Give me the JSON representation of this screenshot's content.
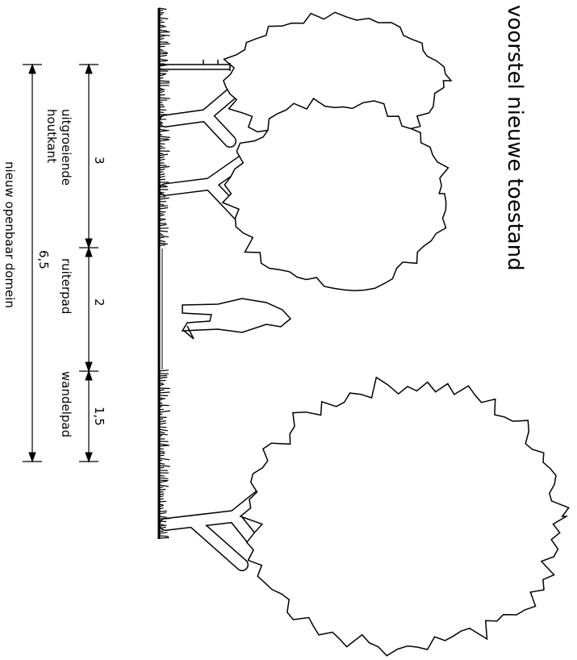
{
  "title": "voorstel nieuwe toestand",
  "zones": [
    {
      "length": "3",
      "label_lines": [
        "uitgroeiende",
        "houtkant"
      ]
    },
    {
      "length": "2",
      "label_lines": [
        "ruiterpad"
      ]
    },
    {
      "length": "1,5",
      "label_lines": [
        "wandelpad"
      ]
    }
  ],
  "total": {
    "length": "6,5",
    "label": "nieuw openbaar domein"
  }
}
